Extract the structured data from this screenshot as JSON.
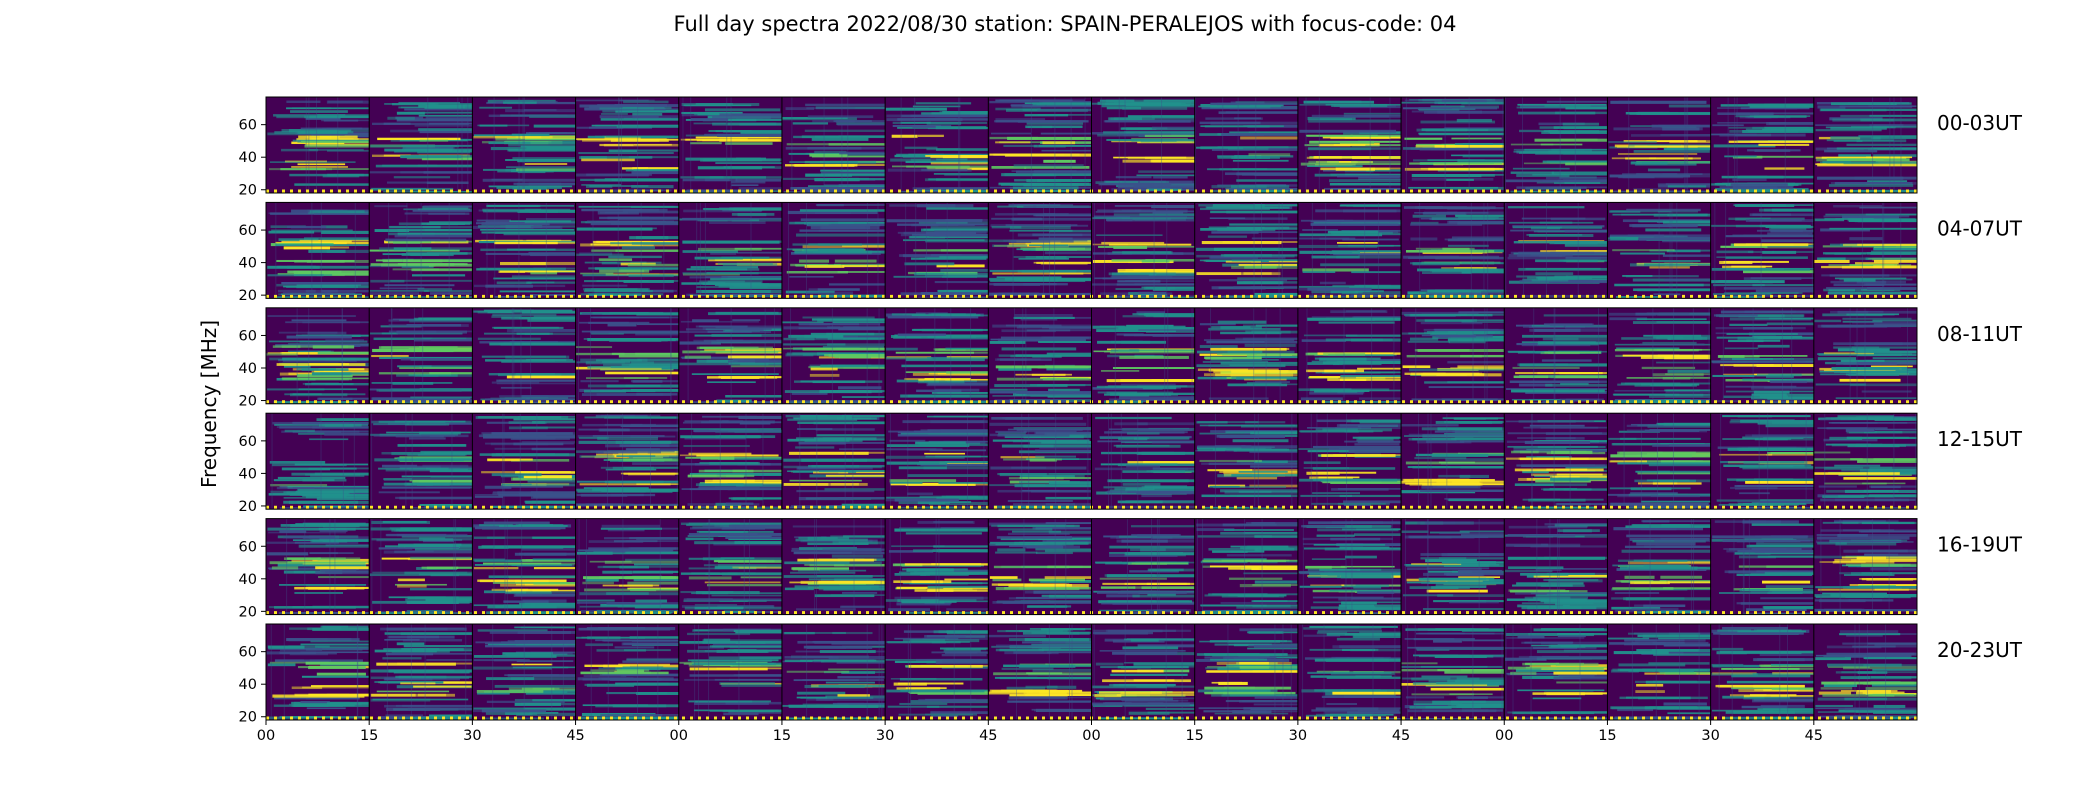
{
  "chart_data": {
    "type": "heatmap",
    "title": "Full day spectra 2022/08/30 station: SPAIN-PERALEJOS with focus-code: 04",
    "ylabel": "Frequency [MHz]",
    "xlabel": "",
    "ylim": [
      18,
      77
    ],
    "yticks": [
      20,
      40,
      60
    ],
    "xtick_labels": [
      "00",
      "15",
      "30",
      "45",
      "00",
      "15",
      "30",
      "45",
      "00",
      "15",
      "30",
      "45",
      "00",
      "15",
      "30",
      "45"
    ],
    "panels_per_row": 16,
    "panel_minutes": 15,
    "colormap": [
      "#440154",
      "#3b528b",
      "#21918c",
      "#5ec962",
      "#fde725"
    ],
    "rows": [
      {
        "label": "00-03UT"
      },
      {
        "label": "04-07UT"
      },
      {
        "label": "08-11UT"
      },
      {
        "label": "12-15UT"
      },
      {
        "label": "16-19UT"
      },
      {
        "label": "20-23UT"
      }
    ],
    "grid": false
  }
}
